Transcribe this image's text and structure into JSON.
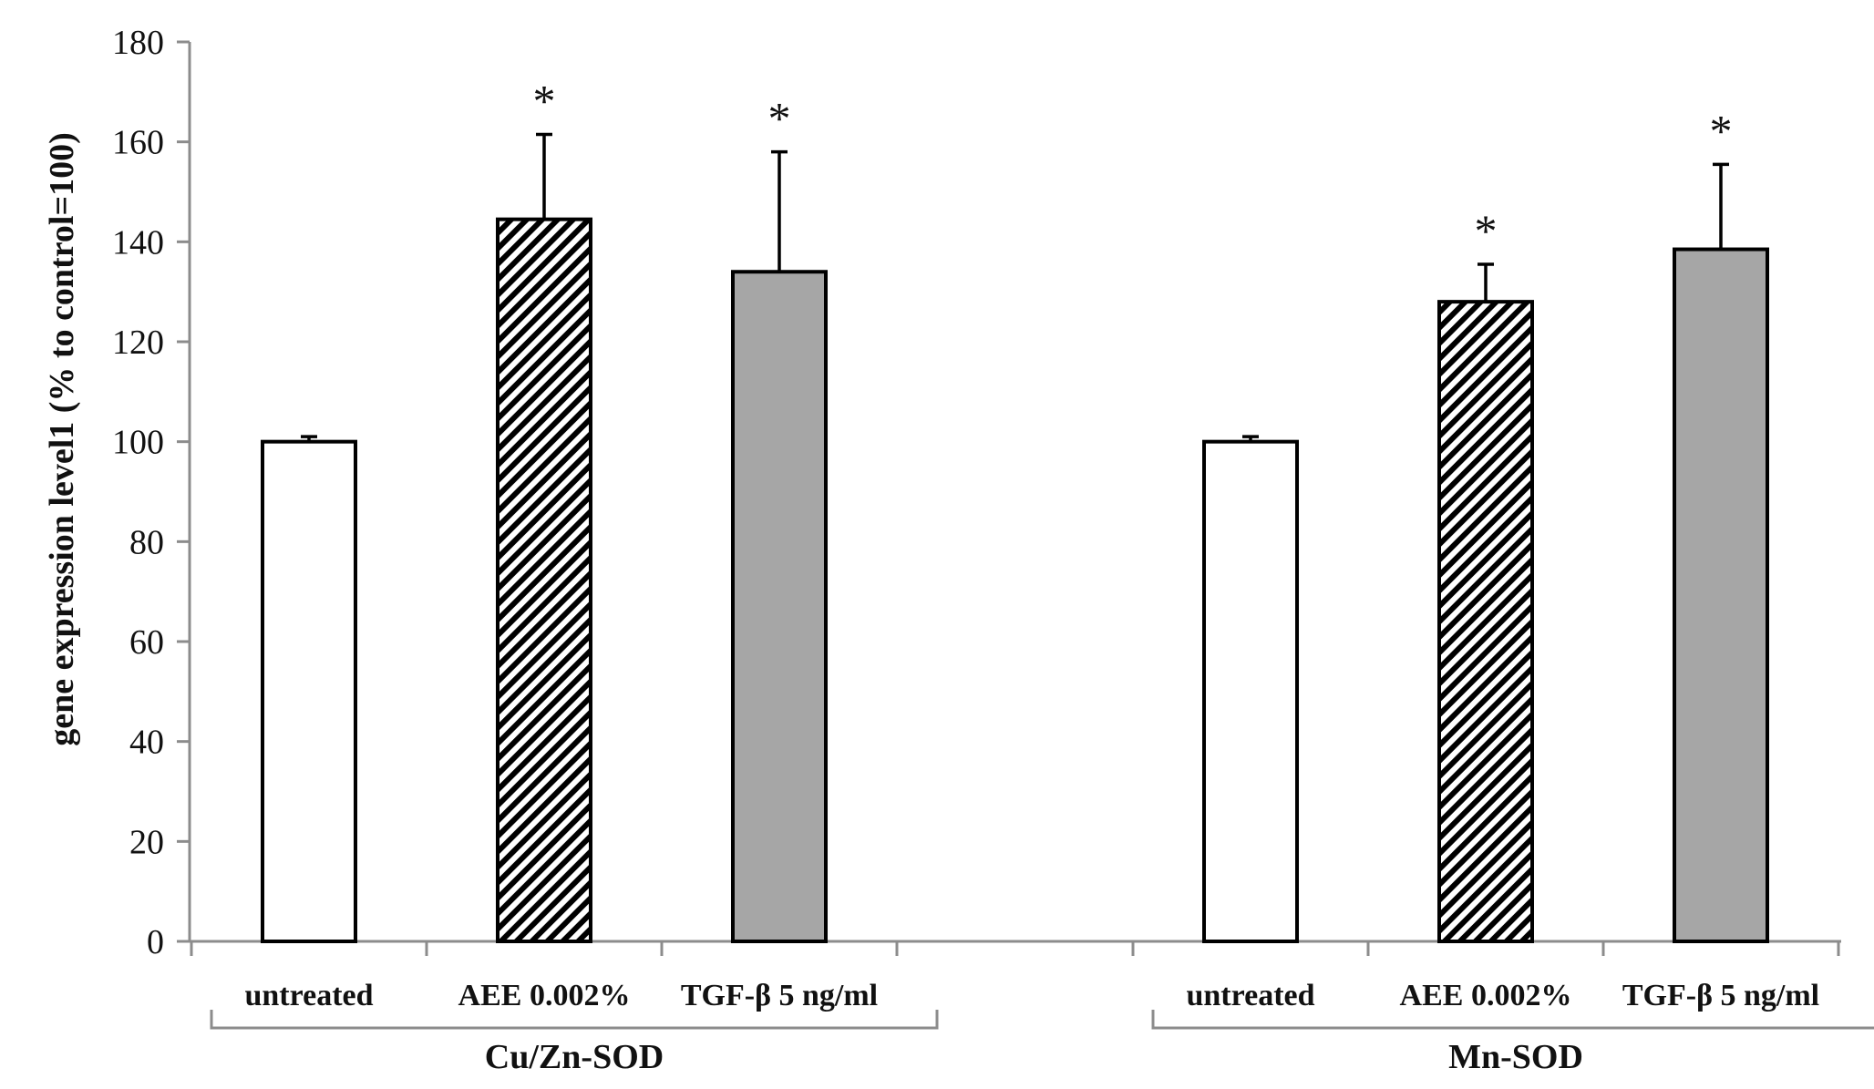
{
  "chart_data": {
    "type": "bar",
    "title": "",
    "ylabel": "gene expression level1 (% to control=100)",
    "xlabel": "",
    "ylim": [
      0,
      180
    ],
    "yticks": [
      "0",
      "20",
      "40",
      "60",
      "80",
      "100",
      "120",
      "140",
      "160",
      "180"
    ],
    "groups": [
      {
        "name": "Cu/Zn-SOD",
        "bars": [
          {
            "label": "untreated",
            "value": 100,
            "error": 1,
            "fill": "white",
            "significant": false
          },
          {
            "label": "AEE 0.002%",
            "value": 144.5,
            "error": 17,
            "fill": "hatched",
            "significant": true
          },
          {
            "label": "TGF-β 5 ng/ml",
            "value": 134,
            "error": 24,
            "fill": "gray",
            "significant": true
          }
        ]
      },
      {
        "name": "Mn-SOD",
        "bars": [
          {
            "label": "untreated",
            "value": 100,
            "error": 1,
            "fill": "white",
            "significant": false
          },
          {
            "label": "AEE 0.002%",
            "value": 128,
            "error": 7.5,
            "fill": "hatched",
            "significant": true
          },
          {
            "label": "TGF-β 5 ng/ml",
            "value": 138.5,
            "error": 17,
            "fill": "gray",
            "significant": true
          }
        ]
      }
    ],
    "significance_marker": "*",
    "colors": {
      "gray": "#a6a6a6",
      "white": "#ffffff",
      "stroke": "#000000",
      "axis": "#8c8c8c"
    }
  }
}
